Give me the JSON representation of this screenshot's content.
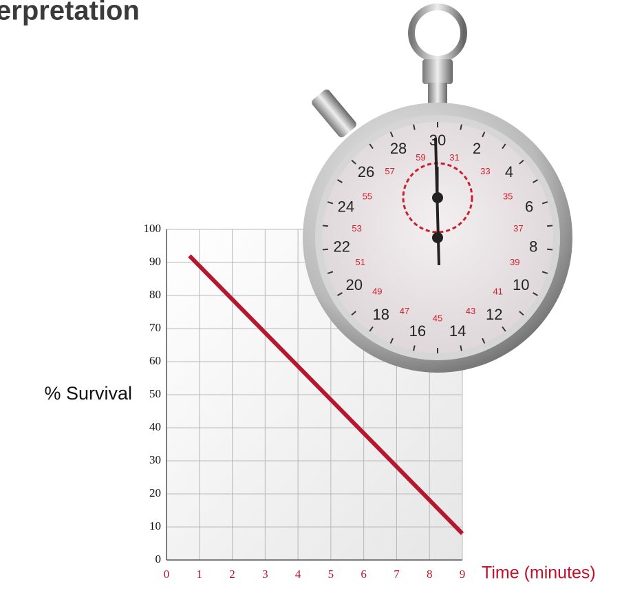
{
  "chart_data": {
    "type": "line",
    "title": "erpretation",
    "x": [
      0.7,
      9
    ],
    "values": [
      92,
      8
    ],
    "color": "#b5172f",
    "xlim": [
      0,
      9
    ],
    "ylim": [
      0,
      100
    ],
    "xticks": [
      0,
      1,
      2,
      3,
      4,
      5,
      6,
      7,
      8,
      9
    ],
    "yticks": [
      0,
      10,
      20,
      30,
      40,
      50,
      60,
      70,
      80,
      90,
      100
    ],
    "grid": true,
    "xlabel": "Time (minutes)",
    "ylabel": "% Survival"
  },
  "stopwatch": {
    "dial": [
      "30",
      "31",
      "2",
      "33",
      "4",
      "35",
      "6",
      "37",
      "8",
      "39",
      "10",
      "41",
      "12",
      "43",
      "14",
      "45",
      "16",
      "47",
      "18",
      "49",
      "20",
      "51",
      "22",
      "53",
      "24",
      "55",
      "26",
      "57",
      "28",
      "59"
    ]
  }
}
